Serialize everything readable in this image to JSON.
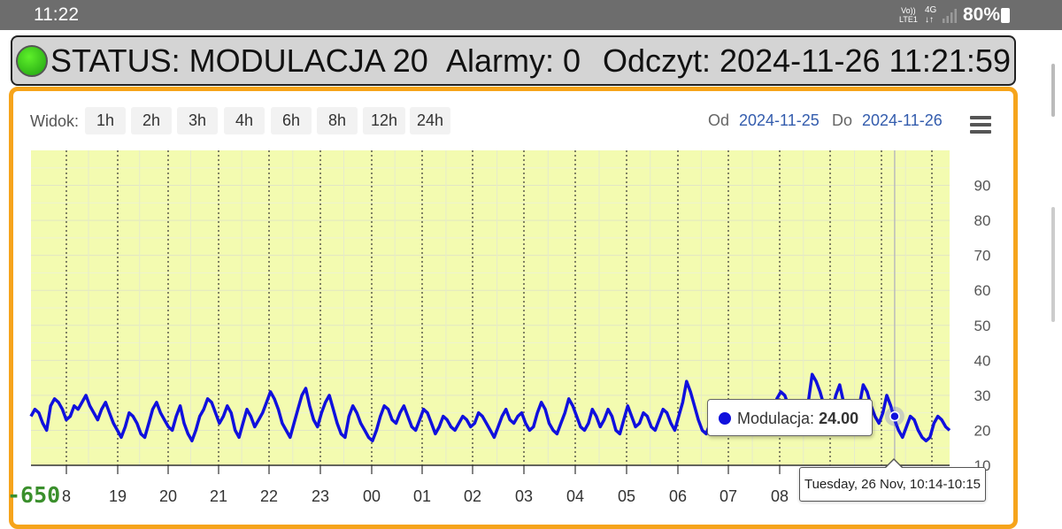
{
  "statusbar": {
    "time": "11:22",
    "net_top": "Vo))",
    "net_bottom": "LTE1",
    "sig_top": "4G",
    "sig_bottom": "↓↑",
    "battery": "80%"
  },
  "header": {
    "status": "STATUS: MODULACJA 20",
    "alarms": "Alarmy: 0",
    "reading": "Odczyt: 2024-11-26 11:21:59",
    "status_color": "#2ecc1a"
  },
  "toolbar": {
    "view_label": "Widok:",
    "ranges": [
      "1h",
      "2h",
      "3h",
      "4h",
      "6h",
      "8h",
      "12h",
      "24h"
    ],
    "from_label": "Od",
    "from_value": "2024-11-25",
    "to_label": "Do",
    "to_value": "2024-11-26"
  },
  "chart_data": {
    "type": "line",
    "series": [
      {
        "name": "Modulacja",
        "color": "#1010dd",
        "values": [
          24,
          26,
          25,
          22,
          20,
          27,
          29,
          28,
          26,
          23,
          24,
          27,
          26,
          28,
          30,
          27,
          25,
          23,
          26,
          28,
          25,
          22,
          20,
          18,
          21,
          25,
          24,
          22,
          19,
          18,
          22,
          26,
          28,
          25,
          23,
          21,
          20,
          24,
          27,
          22,
          19,
          17,
          20,
          24,
          26,
          29,
          28,
          25,
          22,
          24,
          27,
          25,
          20,
          18,
          22,
          26,
          24,
          21,
          23,
          25,
          28,
          31,
          29,
          26,
          22,
          20,
          18,
          22,
          26,
          30,
          32,
          27,
          23,
          21,
          25,
          28,
          30,
          26,
          22,
          19,
          18,
          24,
          27,
          25,
          22,
          20,
          18,
          17,
          20,
          24,
          27,
          26,
          23,
          22,
          25,
          27,
          24,
          21,
          20,
          23,
          26,
          25,
          22,
          19,
          21,
          24,
          23,
          21,
          20,
          22,
          24,
          23,
          21,
          22,
          25,
          24,
          22,
          20,
          18,
          21,
          24,
          26,
          23,
          22,
          24,
          25,
          22,
          20,
          21,
          25,
          28,
          26,
          22,
          20,
          19,
          22,
          25,
          29,
          27,
          24,
          21,
          20,
          22,
          26,
          24,
          21,
          23,
          26,
          24,
          20,
          19,
          23,
          27,
          24,
          21,
          22,
          25,
          24,
          21,
          20,
          23,
          26,
          25,
          22,
          20,
          24,
          28,
          34,
          31,
          27,
          23,
          20,
          19,
          22,
          24,
          23,
          21,
          20,
          22,
          24,
          25,
          23,
          21,
          22,
          24,
          26,
          23,
          21,
          20,
          24,
          29,
          31,
          30,
          27,
          24,
          21,
          22,
          25,
          28,
          36,
          34,
          31,
          27,
          23,
          25,
          30,
          33,
          28,
          24,
          21,
          22,
          27,
          33,
          31,
          27,
          24,
          22,
          25,
          30,
          27,
          23,
          20,
          18,
          21,
          24,
          23,
          20,
          18,
          17,
          18,
          22,
          24,
          23,
          21,
          20
        ]
      }
    ],
    "x_ticks": [
      "8",
      "19",
      "20",
      "21",
      "22",
      "23",
      "00",
      "01",
      "02",
      "03",
      "04",
      "05",
      "06",
      "07",
      "08"
    ],
    "y_ticks": [
      10,
      20,
      30,
      40,
      50,
      60,
      70,
      80,
      90
    ],
    "ylim": [
      10,
      100
    ],
    "grid": true,
    "background": "#f3fbb0",
    "tooltip": {
      "series": "Modulacja",
      "value": "24.00",
      "time": "Tuesday, 26 Nov, 10:14-10:15"
    }
  },
  "overlay_value": "-650"
}
